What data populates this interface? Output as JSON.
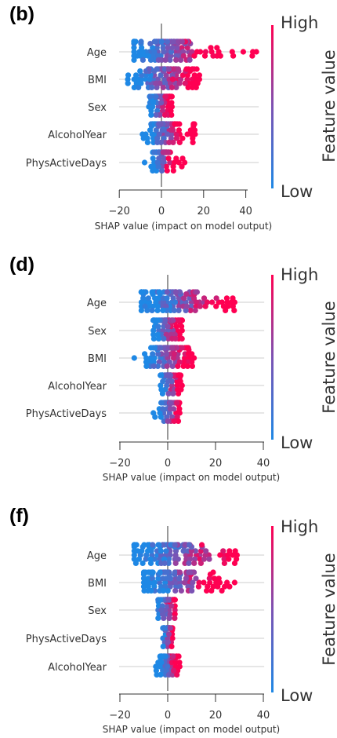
{
  "colors": {
    "low": "#1e88e5",
    "high": "#ff0052",
    "mid": "#7c52b3"
  },
  "chart_data": [
    {
      "type": "scatter",
      "panel_label": "(b)",
      "xlabel": "SHAP value (impact on model output)",
      "xlim": [
        -25,
        48
      ],
      "xticks": [
        -20,
        0,
        20,
        40
      ],
      "xtick_labels": [
        "−20",
        "0",
        "20",
        "40"
      ],
      "colorbar": {
        "high": "High",
        "low": "Low",
        "label": "Feature value"
      },
      "features": [
        {
          "name": "Age",
          "min": -13,
          "max": 45,
          "p10": -8,
          "p90": 20
        },
        {
          "name": "BMI",
          "min": -16,
          "max": 18,
          "p10": -9,
          "p90": 11
        },
        {
          "name": "Sex",
          "min": -6,
          "max": 5,
          "p10": -4.5,
          "p90": 3.5
        },
        {
          "name": "AlcoholYear",
          "min": -9,
          "max": 16,
          "p10": -3,
          "p90": 8
        },
        {
          "name": "PhysActiveDays",
          "min": -8,
          "max": 11,
          "p10": -3,
          "p90": 4
        }
      ]
    },
    {
      "type": "scatter",
      "panel_label": "(d)",
      "xlabel": "SHAP value (impact on model output)",
      "xlim": [
        -25,
        42
      ],
      "xticks": [
        -20,
        0,
        20,
        40
      ],
      "xtick_labels": [
        "−20",
        "0",
        "20",
        "40"
      ],
      "colorbar": {
        "high": "High",
        "low": "Low",
        "label": "Feature value"
      },
      "features": [
        {
          "name": "Age",
          "min": -11,
          "max": 28,
          "p10": -6,
          "p90": 20
        },
        {
          "name": "Sex",
          "min": -6,
          "max": 6,
          "p10": -5,
          "p90": 4.5
        },
        {
          "name": "BMI",
          "min": -14,
          "max": 11,
          "p10": -7,
          "p90": 7
        },
        {
          "name": "AlcoholYear",
          "min": -3,
          "max": 6,
          "p10": -2,
          "p90": 4
        },
        {
          "name": "PhysActiveDays",
          "min": -6,
          "max": 5,
          "p10": -2,
          "p90": 3.5
        }
      ]
    },
    {
      "type": "scatter",
      "panel_label": "(f)",
      "xlabel": "SHAP value (impact on model output)",
      "xlim": [
        -25,
        42
      ],
      "xticks": [
        -20,
        0,
        20,
        40
      ],
      "xtick_labels": [
        "−20",
        "0",
        "20",
        "40"
      ],
      "colorbar": {
        "high": "High",
        "low": "Low",
        "label": "Feature value"
      },
      "features": [
        {
          "name": "Age",
          "min": -14,
          "max": 29,
          "p10": -7,
          "p90": 22
        },
        {
          "name": "BMI",
          "min": -10,
          "max": 28,
          "p10": -5,
          "p90": 16
        },
        {
          "name": "Sex",
          "min": -4,
          "max": 3,
          "p10": -3.5,
          "p90": 2.5
        },
        {
          "name": "PhysActiveDays",
          "min": -2,
          "max": 2,
          "p10": -1.5,
          "p90": 1.5
        },
        {
          "name": "AlcoholYear",
          "min": -5,
          "max": 5,
          "p10": -2,
          "p90": 3
        }
      ]
    }
  ]
}
